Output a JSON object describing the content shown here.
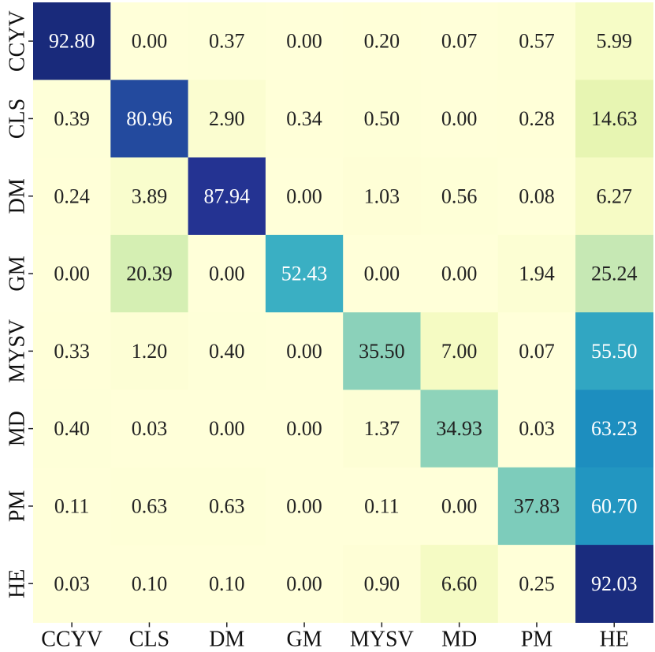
{
  "chart_data": {
    "type": "heatmap",
    "title": "",
    "xlabel": "",
    "ylabel": "",
    "x_categories": [
      "CCYV",
      "CLS",
      "DM",
      "GM",
      "MYSV",
      "MD",
      "PM",
      "HE"
    ],
    "y_categories": [
      "CCYV",
      "CLS",
      "DM",
      "GM",
      "MYSV",
      "MD",
      "PM",
      "HE"
    ],
    "value_range": [
      0,
      100
    ],
    "colormap": "YlGnBu",
    "values": [
      [
        92.8,
        0.0,
        0.37,
        0.0,
        0.2,
        0.07,
        0.57,
        5.99
      ],
      [
        0.39,
        80.96,
        2.9,
        0.34,
        0.5,
        0.0,
        0.28,
        14.63
      ],
      [
        0.24,
        3.89,
        87.94,
        0.0,
        1.03,
        0.56,
        0.08,
        6.27
      ],
      [
        0.0,
        20.39,
        0.0,
        52.43,
        0.0,
        0.0,
        1.94,
        25.24
      ],
      [
        0.33,
        1.2,
        0.4,
        0.0,
        35.5,
        7.0,
        0.07,
        55.5
      ],
      [
        0.4,
        0.03,
        0.0,
        0.0,
        1.37,
        34.93,
        0.03,
        63.23
      ],
      [
        0.11,
        0.63,
        0.63,
        0.0,
        0.11,
        0.0,
        37.83,
        60.7
      ],
      [
        0.03,
        0.1,
        0.1,
        0.0,
        0.9,
        6.6,
        0.25,
        92.03
      ]
    ]
  }
}
